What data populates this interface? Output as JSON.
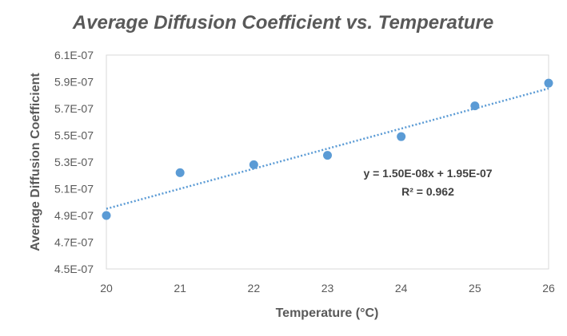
{
  "chart_data": {
    "type": "scatter",
    "title": "Average Diffusion Coefficient vs. Temperature",
    "xlabel": "Temperature (°C)",
    "ylabel": "Average Diffusion Coefficient",
    "xlim": [
      20,
      26
    ],
    "ylim": [
      4.5e-07,
      6.1e-07
    ],
    "x_ticks": [
      20,
      21,
      22,
      23,
      24,
      25,
      26
    ],
    "x_tick_labels": [
      "20",
      "21",
      "22",
      "23",
      "24",
      "25",
      "26"
    ],
    "y_ticks": [
      4.5e-07,
      4.7e-07,
      4.9e-07,
      5.1e-07,
      5.3e-07,
      5.5e-07,
      5.7e-07,
      5.9e-07,
      6.1e-07
    ],
    "y_tick_labels": [
      "4.5E-07",
      "4.7E-07",
      "4.9E-07",
      "5.1E-07",
      "5.3E-07",
      "5.5E-07",
      "5.7E-07",
      "5.9E-07",
      "6.1E-07"
    ],
    "grid": false,
    "legend": "none",
    "series": [
      {
        "x": [
          20,
          21,
          22,
          23,
          24,
          25,
          26
        ],
        "y": [
          4.9e-07,
          5.22e-07,
          5.28e-07,
          5.35e-07,
          5.49e-07,
          5.72e-07,
          5.89e-07
        ],
        "color": "#5b9bd5"
      }
    ],
    "trendline": {
      "slope": 1.5e-08,
      "intercept": 1.95e-07,
      "equation": "y = 1.50E-08x + 1.95E-07",
      "r_squared": "R² = 0.962",
      "color": "#5b9bd5",
      "style": "dotted"
    }
  }
}
